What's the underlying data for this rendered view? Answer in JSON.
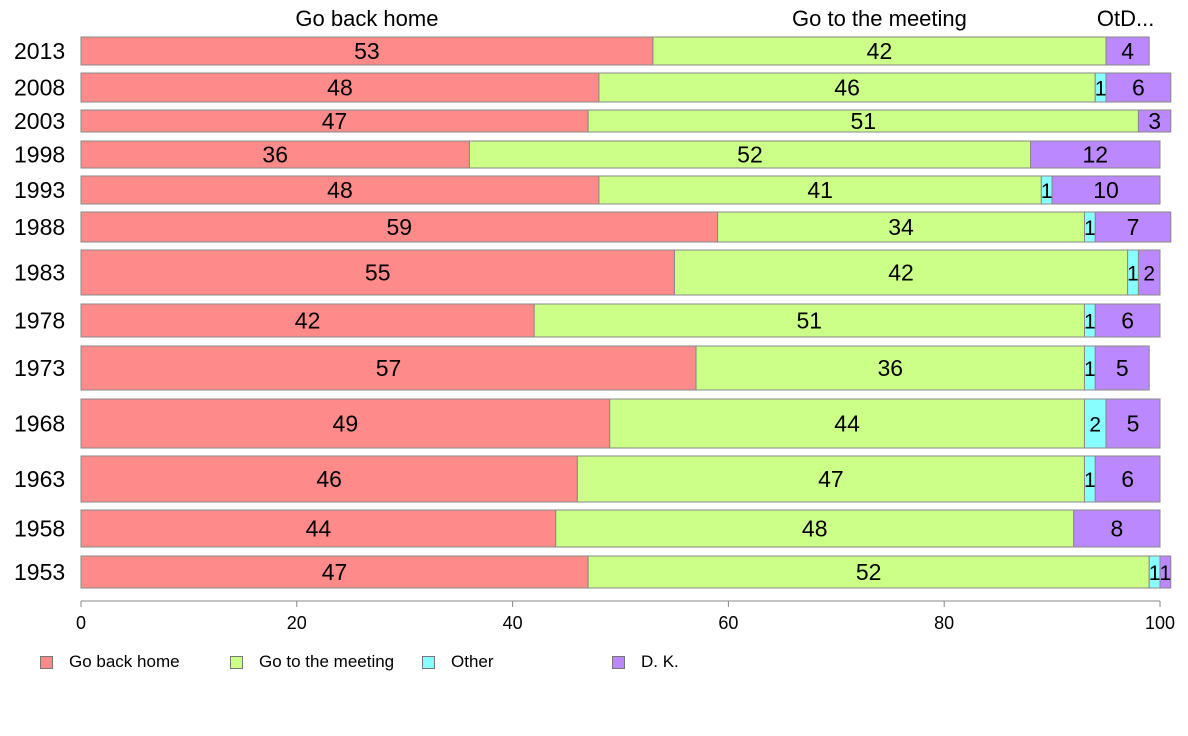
{
  "chart_data": {
    "type": "bar",
    "orientation": "horizontal",
    "stacked": true,
    "categories": [
      "2013",
      "2008",
      "2003",
      "1998",
      "1993",
      "1988",
      "1983",
      "1978",
      "1973",
      "1968",
      "1963",
      "1958",
      "1953"
    ],
    "series": [
      {
        "name": "Go back home",
        "color": "#ff8a8a",
        "values": [
          53,
          48,
          47,
          36,
          48,
          59,
          55,
          42,
          57,
          49,
          46,
          44,
          47
        ]
      },
      {
        "name": "Go to the meeting",
        "color": "#ccff88",
        "values": [
          42,
          46,
          51,
          52,
          41,
          34,
          42,
          51,
          36,
          44,
          47,
          48,
          52
        ]
      },
      {
        "name": "Other",
        "color": "#88ffff",
        "values": [
          0,
          1,
          0,
          0,
          1,
          1,
          1,
          1,
          1,
          2,
          1,
          0,
          1
        ]
      },
      {
        "name": "D. K.",
        "color": "#bb88ff",
        "values": [
          4,
          6,
          3,
          12,
          10,
          7,
          2,
          6,
          5,
          5,
          6,
          8,
          1
        ]
      }
    ],
    "header_labels": [
      "Go back home",
      "Go to the meeting",
      "OtD..."
    ],
    "xlim": [
      0,
      100
    ],
    "xticks": [
      0,
      20,
      40,
      60,
      80,
      100
    ],
    "xlabel": "",
    "ylabel": "",
    "grid": false,
    "legend_position": "bottom"
  }
}
